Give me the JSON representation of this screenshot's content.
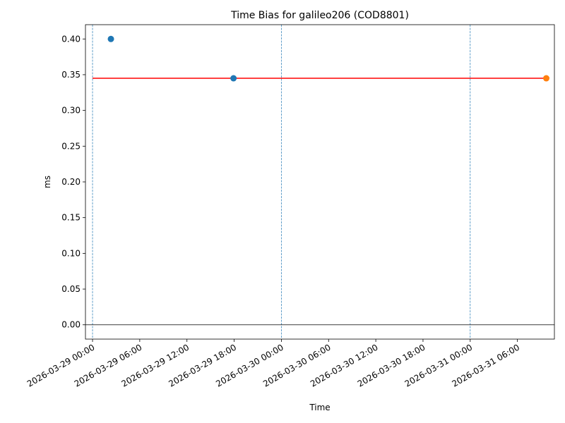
{
  "chart_data": {
    "type": "scatter",
    "title": "Time Bias for galileo206 (COD8801)",
    "xlabel": "Time",
    "ylabel": "ms",
    "xlim": [
      "2026-03-28 23:06",
      "2026-03-31 10:42"
    ],
    "ylim": [
      -0.02,
      0.42
    ],
    "xticks": [
      "2026-03-29 00:00",
      "2026-03-29 06:00",
      "2026-03-29 12:00",
      "2026-03-29 18:00",
      "2026-03-30 00:00",
      "2026-03-30 06:00",
      "2026-03-30 12:00",
      "2026-03-30 18:00",
      "2026-03-31 00:00",
      "2026-03-31 06:00"
    ],
    "yticks": [
      {
        "value": 0,
        "label": "0.00"
      },
      {
        "value": 0.05,
        "label": "0.05"
      },
      {
        "value": 0.1,
        "label": "0.10"
      },
      {
        "value": 0.15,
        "label": "0.15"
      },
      {
        "value": 0.2,
        "label": "0.20"
      },
      {
        "value": 0.25,
        "label": "0.25"
      },
      {
        "value": 0.3,
        "label": "0.30"
      },
      {
        "value": 0.35,
        "label": "0.35"
      },
      {
        "value": 0.4,
        "label": "0.40"
      }
    ],
    "series": [
      {
        "type": "line",
        "color": "#ff0000",
        "x": [
          "2026-03-29 00:00",
          "2026-03-31 09:40"
        ],
        "values": [
          0.345,
          0.345
        ]
      },
      {
        "type": "scatter",
        "color": "#1f77b4",
        "x": [
          "2026-03-29 02:20",
          "2026-03-29 17:55"
        ],
        "values": [
          0.4,
          0.345
        ]
      },
      {
        "type": "scatter",
        "color": "#ff7f0e",
        "x": [
          "2026-03-31 09:40"
        ],
        "values": [
          0.345
        ]
      }
    ],
    "vlines": {
      "color": "#1f77b4",
      "x": [
        "2026-03-29 00:00",
        "2026-03-30 00:00",
        "2026-03-31 00:00"
      ]
    },
    "hline": {
      "color": "#000000",
      "value": 0
    }
  }
}
